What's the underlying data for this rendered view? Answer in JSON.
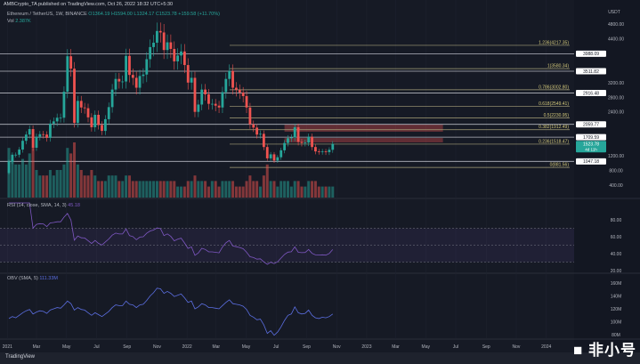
{
  "header": {
    "published": "AMBCrypto_TA published on TradingView.com, Oct 26, 2022 18:32 UTC+5:30"
  },
  "legend": {
    "symbol": "Ethereum / TetherUS, 1W, BINANCE",
    "o": "O1364.19",
    "h": "H1594.00",
    "l": "L1324.17",
    "c": "C1523.78",
    "change": "+159.58 (+11.70%)",
    "vol_label": "Vol",
    "vol_value": "2.387K"
  },
  "rsi_legend": {
    "label": "RSI (14, close, SMA, 14, 3)",
    "value": "45.18"
  },
  "obv_legend": {
    "label": "OBV (SMA, 5)",
    "value": "111.33M"
  },
  "footer": {
    "logo": "TradingView"
  },
  "watermark": "非小号",
  "colors": {
    "up": "#26a69a",
    "down": "#ef5350",
    "rsi": "#7e57c2",
    "obv": "#5b6ee1",
    "fib": "#a8a27a",
    "zone": "#ef5350",
    "bg": "#161a25"
  },
  "chart_data": {
    "type": "candlestick",
    "interval": "1W",
    "start_week": "2021-01-04",
    "first_open": 730,
    "close": [
      1040,
      1230,
      1230,
      1370,
      1610,
      1780,
      1930,
      1420,
      1720,
      1790,
      1780,
      1690,
      2080,
      2140,
      2240,
      2240,
      2950,
      3920,
      3580,
      2100,
      2700,
      2520,
      2500,
      2250,
      1980,
      2320,
      2040,
      1880,
      2200,
      2530,
      3010,
      3300,
      3230,
      3230,
      3930,
      3410,
      3330,
      3060,
      3380,
      3420,
      3840,
      4170,
      4290,
      4610,
      4570,
      4090,
      4300,
      4120,
      3780,
      3940,
      4050,
      3680,
      3200,
      3330,
      2400,
      2600,
      3010,
      2880,
      2620,
      2620,
      2570,
      2520,
      2940,
      3300,
      3520,
      3060,
      3000,
      2930,
      2830,
      2520,
      2060,
      1970,
      1780,
      1800,
      1440,
      1130,
      1240,
      1070,
      1160,
      1350,
      1550,
      1680,
      1700,
      1980,
      1580,
      1550,
      1560,
      1720,
      1440,
      1320,
      1310,
      1320,
      1300,
      1364.19,
      1523.78
    ],
    "volume_m": [
      9,
      7,
      6,
      6,
      7,
      6,
      8,
      9,
      5,
      4,
      4,
      4,
      5,
      4,
      5,
      5,
      6,
      9,
      8,
      10,
      6,
      5,
      4,
      4,
      5,
      4,
      3,
      3,
      3,
      4,
      4,
      4,
      3,
      3,
      4,
      4,
      3,
      3,
      3,
      3,
      3,
      3,
      3,
      3,
      3,
      3,
      3,
      3,
      3,
      2,
      2,
      2,
      3,
      3,
      4,
      3,
      3,
      3,
      2,
      3,
      3,
      2,
      3,
      3,
      3,
      3,
      2,
      2,
      2,
      3,
      4,
      3,
      3,
      2,
      4,
      6,
      3,
      3,
      2,
      3,
      3,
      3,
      2,
      3,
      3,
      2,
      2,
      3,
      3,
      3,
      2,
      2,
      2,
      2,
      2
    ],
    "obv_m": [
      105,
      108,
      106,
      110,
      114,
      117,
      119,
      112,
      115,
      117,
      116,
      113,
      118,
      120,
      122,
      121,
      126,
      132,
      128,
      118,
      122,
      119,
      118,
      114,
      110,
      114,
      111,
      108,
      112,
      116,
      122,
      126,
      125,
      125,
      132,
      127,
      126,
      122,
      126,
      127,
      133,
      140,
      145,
      152,
      151,
      144,
      147,
      144,
      139,
      141,
      143,
      137,
      130,
      132,
      120,
      123,
      128,
      126,
      122,
      122,
      121,
      120,
      125,
      130,
      134,
      128,
      127,
      126,
      124,
      119,
      110,
      107,
      103,
      104,
      95,
      82,
      86,
      79,
      84,
      92,
      102,
      110,
      112,
      123,
      114,
      112,
      113,
      118,
      110,
      106,
      105,
      107,
      106,
      108,
      112
    ],
    "price_axis": {
      "unit": "USDT",
      "ticks": [
        "4800.00",
        "4400.00",
        "3200.00",
        "2800.00",
        "2400.00",
        "1200.00",
        "800.00",
        "400.00"
      ]
    },
    "price_labels": [
      {
        "value": "3988.09"
      },
      {
        "value": "3511.82"
      },
      {
        "value": "2916.48"
      },
      {
        "value": "2059.77"
      },
      {
        "value": "1709.59"
      },
      {
        "value": "1047.18"
      }
    ],
    "current_price": {
      "value": "1523.78",
      "countdown": "4d 11h"
    },
    "fib_levels": [
      {
        "ratio": "1.236",
        "price": "4217.35"
      },
      {
        "ratio": "1",
        "price": "3580.34"
      },
      {
        "ratio": "0.786",
        "price": "3002.80"
      },
      {
        "ratio": "0.618",
        "price": "2549.41"
      },
      {
        "ratio": "0.5",
        "price": "2230.95"
      },
      {
        "ratio": "0.382",
        "price": "1912.49"
      },
      {
        "ratio": "0.236",
        "price": "1518.47"
      },
      {
        "ratio": "0",
        "price": "881.56"
      }
    ],
    "supply_zones": [
      {
        "from": "2022-07-18",
        "to": "2023-06-05",
        "low": 1858,
        "high": 2052
      },
      {
        "from": "2022-07-18",
        "to": "2023-06-05",
        "low": 1566,
        "high": 1687
      }
    ],
    "rsi": {
      "period": 14,
      "bands": [
        70,
        50,
        30
      ],
      "ticks": [
        "80.00",
        "60.00",
        "40.00",
        "20.00"
      ]
    },
    "obv_axis": {
      "ticks": [
        "160M",
        "140M",
        "120M",
        "100M",
        "80M"
      ]
    },
    "time_axis": [
      {
        "label": "2021",
        "date": "2021-01-01"
      },
      {
        "label": "Mar",
        "date": "2021-03-01"
      },
      {
        "label": "May",
        "date": "2021-05-01"
      },
      {
        "label": "Jul",
        "date": "2021-07-01"
      },
      {
        "label": "Sep",
        "date": "2021-09-01"
      },
      {
        "label": "Nov",
        "date": "2021-11-01"
      },
      {
        "label": "2022",
        "date": "2022-01-01"
      },
      {
        "label": "Mar",
        "date": "2022-03-01"
      },
      {
        "label": "May",
        "date": "2022-05-01"
      },
      {
        "label": "Jul",
        "date": "2022-07-01"
      },
      {
        "label": "Sep",
        "date": "2022-09-01"
      },
      {
        "label": "Nov",
        "date": "2022-11-01"
      },
      {
        "label": "2023",
        "date": "2023-01-01"
      },
      {
        "label": "Mar",
        "date": "2023-03-01"
      },
      {
        "label": "May",
        "date": "2023-05-01"
      },
      {
        "label": "Jul",
        "date": "2023-07-01"
      },
      {
        "label": "Sep",
        "date": "2023-09-01"
      },
      {
        "label": "Nov",
        "date": "2023-11-01"
      },
      {
        "label": "2024",
        "date": "2024-01-01"
      }
    ]
  }
}
